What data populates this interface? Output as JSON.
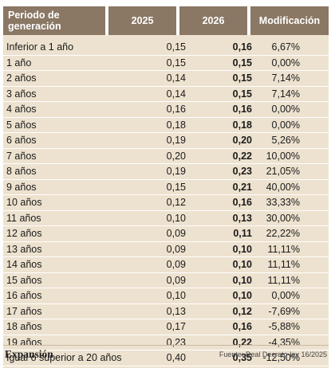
{
  "table": {
    "headers": [
      "Periodo de generación",
      "2025",
      "2026",
      "Modificación"
    ],
    "rows": [
      [
        "Inferior a 1 año",
        "0,15",
        "0,16",
        "6,67%"
      ],
      [
        "1 año",
        "0,15",
        "0,15",
        "0,00%"
      ],
      [
        "2 años",
        "0,14",
        "0,15",
        "7,14%"
      ],
      [
        "3 años",
        "0,14",
        "0,15",
        "7,14%"
      ],
      [
        "4 años",
        "0,16",
        "0,16",
        "0,00%"
      ],
      [
        "5 años",
        "0,18",
        "0,18",
        "0,00%"
      ],
      [
        "6 años",
        "0,19",
        "0,20",
        "5,26%"
      ],
      [
        "7 años",
        "0,20",
        "0,22",
        "10,00%"
      ],
      [
        "8 años",
        "0,19",
        "0,23",
        "21,05%"
      ],
      [
        "9 años",
        "0,15",
        "0,21",
        "40,00%"
      ],
      [
        "10 años",
        "0,12",
        "0,16",
        "33,33%"
      ],
      [
        "11 años",
        "0,10",
        "0,13",
        "30,00%"
      ],
      [
        "12 años",
        "0,09",
        "0,11",
        "22,22%"
      ],
      [
        "13 años",
        "0,09",
        "0,10",
        "11,11%"
      ],
      [
        "14 años",
        "0,09",
        "0,10",
        "11,11%"
      ],
      [
        "15 años",
        "0,09",
        "0,10",
        "11,11%"
      ],
      [
        "16 años",
        "0,10",
        "0,10",
        "0,00%"
      ],
      [
        "17 años",
        "0,13",
        "0,12",
        "-7,69%"
      ],
      [
        "18 años",
        "0,17",
        "0,16",
        "-5,88%"
      ],
      [
        "19 años",
        "0,23",
        "0,22",
        "-4,35%"
      ],
      [
        "Igual o superior a 20 años",
        "0,40",
        "0,35",
        "-12,50%"
      ]
    ]
  },
  "footer": {
    "brand": "Expansión",
    "source": "Fuente: Real Decreto-ley 16/2025"
  },
  "colors": {
    "header_bg": "#8a7764",
    "row_bg": "#ede2cf"
  }
}
